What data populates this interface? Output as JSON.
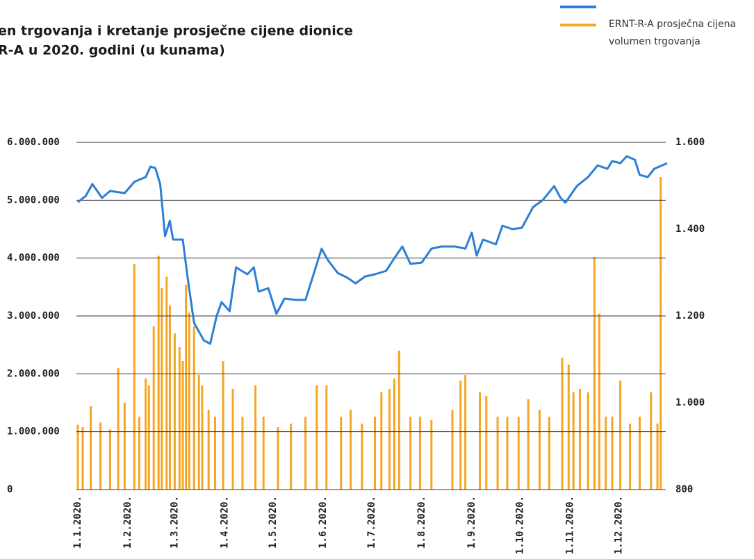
{
  "chart_data": {
    "type": "bar-line",
    "title": [
      "en trgovanja i kretanje prosječne cijene dionice",
      "R-A u 2020. godini (u kunama)"
    ],
    "xlim": [
      "2020-01-01",
      "2020-12-31"
    ],
    "xticks": [
      {
        "value": "2020-01-01",
        "label": "1.1.2020."
      },
      {
        "value": "2020-02-01",
        "label": "1.2.2020."
      },
      {
        "value": "2020-03-01",
        "label": "1.3.2020."
      },
      {
        "value": "2020-04-01",
        "label": "1.4.2020."
      },
      {
        "value": "2020-05-01",
        "label": "1.5.2020."
      },
      {
        "value": "2020-06-01",
        "label": "1.6.2020."
      },
      {
        "value": "2020-07-01",
        "label": "1.7.2020."
      },
      {
        "value": "2020-08-01",
        "label": "1.8.2020."
      },
      {
        "value": "2020-09-01",
        "label": "1.9.2020."
      },
      {
        "value": "2020-10-01",
        "label": "1.10.2020."
      },
      {
        "value": "2020-11-01",
        "label": "1.11.2020."
      },
      {
        "value": "2020-12-01",
        "label": "1.12.2020."
      }
    ],
    "ylim": [
      0,
      6000000
    ],
    "yticks": [
      0,
      {
        "value": 1000000,
        "label": "1.000.000"
      },
      {
        "value": 2000000,
        "label": "2.000.000"
      },
      {
        "value": 3000000,
        "label": "3.000.000"
      },
      {
        "value": 4000000,
        "label": "4.000.000"
      },
      {
        "value": 5000000,
        "label": "5.000.000"
      },
      {
        "value": 6000000,
        "label": "6.000.000"
      }
    ],
    "y2lim": [
      800,
      1600
    ],
    "y2ticks": [
      800,
      {
        "value": 1000,
        "label": "1.000"
      },
      {
        "value": 1200,
        "label": "1.200"
      },
      {
        "value": 1400,
        "label": "1.400"
      },
      {
        "value": 1600,
        "label": "1.600"
      }
    ],
    "grid": true,
    "legend": "top-right",
    "series": [
      {
        "name": "ERNT-R-A prosječna cijena",
        "type": "line",
        "axis": "y2",
        "color": "#2b7fd4",
        "x": [
          "2020-01-01",
          "2020-01-06",
          "2020-01-10",
          "2020-01-16",
          "2020-01-21",
          "2020-01-30",
          "2020-02-05",
          "2020-02-12",
          "2020-02-15",
          "2020-02-18",
          "2020-02-21",
          "2020-02-24",
          "2020-02-27",
          "2020-02-29",
          "2020-03-06",
          "2020-03-09",
          "2020-03-13",
          "2020-03-19",
          "2020-03-23",
          "2020-03-27",
          "2020-03-30",
          "2020-04-04",
          "2020-04-08",
          "2020-04-15",
          "2020-04-19",
          "2020-04-22",
          "2020-04-28",
          "2020-05-03",
          "2020-05-08",
          "2020-05-15",
          "2020-05-21",
          "2020-05-26",
          "2020-05-31",
          "2020-06-04",
          "2020-06-10",
          "2020-06-16",
          "2020-06-21",
          "2020-06-27",
          "2020-07-03",
          "2020-07-10",
          "2020-07-15",
          "2020-07-20",
          "2020-07-25",
          "2020-08-01",
          "2020-08-07",
          "2020-08-13",
          "2020-08-22",
          "2020-08-28",
          "2020-09-01",
          "2020-09-04",
          "2020-09-08",
          "2020-09-16",
          "2020-09-20",
          "2020-09-26",
          "2020-10-02",
          "2020-10-09",
          "2020-10-15",
          "2020-10-22",
          "2020-10-26",
          "2020-10-29",
          "2020-11-05",
          "2020-11-12",
          "2020-11-18",
          "2020-11-24",
          "2020-11-27",
          "2020-12-02",
          "2020-12-06",
          "2020-12-11",
          "2020-12-14",
          "2020-12-19",
          "2020-12-23",
          "2020-12-31"
        ],
        "values": [
          1462,
          1477,
          1504,
          1472,
          1488,
          1483,
          1509,
          1520,
          1544,
          1541,
          1504,
          1384,
          1419,
          1376,
          1376,
          1288,
          1184,
          1144,
          1136,
          1200,
          1232,
          1211,
          1312,
          1296,
          1312,
          1256,
          1264,
          1205,
          1240,
          1237,
          1237,
          1296,
          1355,
          1328,
          1299,
          1288,
          1275,
          1291,
          1296,
          1304,
          1333,
          1360,
          1320,
          1323,
          1355,
          1360,
          1360,
          1355,
          1392,
          1339,
          1376,
          1365,
          1408,
          1400,
          1403,
          1451,
          1467,
          1499,
          1472,
          1461,
          1499,
          1520,
          1547,
          1539,
          1557,
          1552,
          1568,
          1560,
          1525,
          1520,
          1539,
          1552
        ]
      },
      {
        "name": "volumen trgovanja",
        "type": "bar",
        "axis": "y",
        "color": "#f5a623",
        "x": [
          "2020-01-01",
          "2020-01-04",
          "2020-01-09",
          "2020-01-15",
          "2020-01-21",
          "2020-01-26",
          "2020-01-30",
          "2020-02-05",
          "2020-02-08",
          "2020-02-12",
          "2020-02-14",
          "2020-02-17",
          "2020-02-20",
          "2020-02-22",
          "2020-02-25",
          "2020-02-27",
          "2020-03-01",
          "2020-03-04",
          "2020-03-06",
          "2020-03-08",
          "2020-03-10",
          "2020-03-13",
          "2020-03-16",
          "2020-03-18",
          "2020-03-22",
          "2020-03-26",
          "2020-03-31",
          "2020-04-06",
          "2020-04-12",
          "2020-04-20",
          "2020-04-25",
          "2020-05-04",
          "2020-05-12",
          "2020-05-21",
          "2020-05-28",
          "2020-06-03",
          "2020-06-12",
          "2020-06-18",
          "2020-06-25",
          "2020-07-03",
          "2020-07-07",
          "2020-07-12",
          "2020-07-15",
          "2020-07-18",
          "2020-07-25",
          "2020-07-31",
          "2020-08-07",
          "2020-08-20",
          "2020-08-25",
          "2020-08-28",
          "2020-09-06",
          "2020-09-10",
          "2020-09-17",
          "2020-09-23",
          "2020-09-30",
          "2020-10-06",
          "2020-10-13",
          "2020-10-19",
          "2020-10-27",
          "2020-10-31",
          "2020-11-03",
          "2020-11-07",
          "2020-11-12",
          "2020-11-16",
          "2020-11-19",
          "2020-11-23",
          "2020-11-27",
          "2020-12-02",
          "2020-12-08",
          "2020-12-14",
          "2020-12-21",
          "2020-12-25",
          "2020-12-27"
        ],
        "values": [
          1120000,
          1080000,
          1440000,
          1160000,
          1040000,
          2100000,
          1500000,
          3900000,
          1260000,
          1920000,
          1800000,
          2820000,
          4040000,
          3480000,
          3680000,
          3180000,
          2700000,
          2460000,
          2220000,
          3540000,
          3060000,
          2820000,
          1980000,
          1800000,
          1380000,
          1260000,
          2220000,
          1740000,
          1260000,
          1800000,
          1260000,
          1080000,
          1140000,
          1260000,
          1800000,
          1800000,
          1260000,
          1380000,
          1140000,
          1260000,
          1680000,
          1740000,
          1920000,
          2400000,
          1260000,
          1260000,
          1200000,
          1380000,
          1880000,
          1980000,
          1680000,
          1620000,
          1260000,
          1260000,
          1260000,
          1560000,
          1380000,
          1260000,
          2280000,
          2160000,
          1680000,
          1740000,
          1680000,
          4020000,
          3040000,
          1260000,
          1260000,
          1880000,
          1140000,
          1260000,
          1680000,
          1140000,
          5400000
        ]
      }
    ]
  }
}
